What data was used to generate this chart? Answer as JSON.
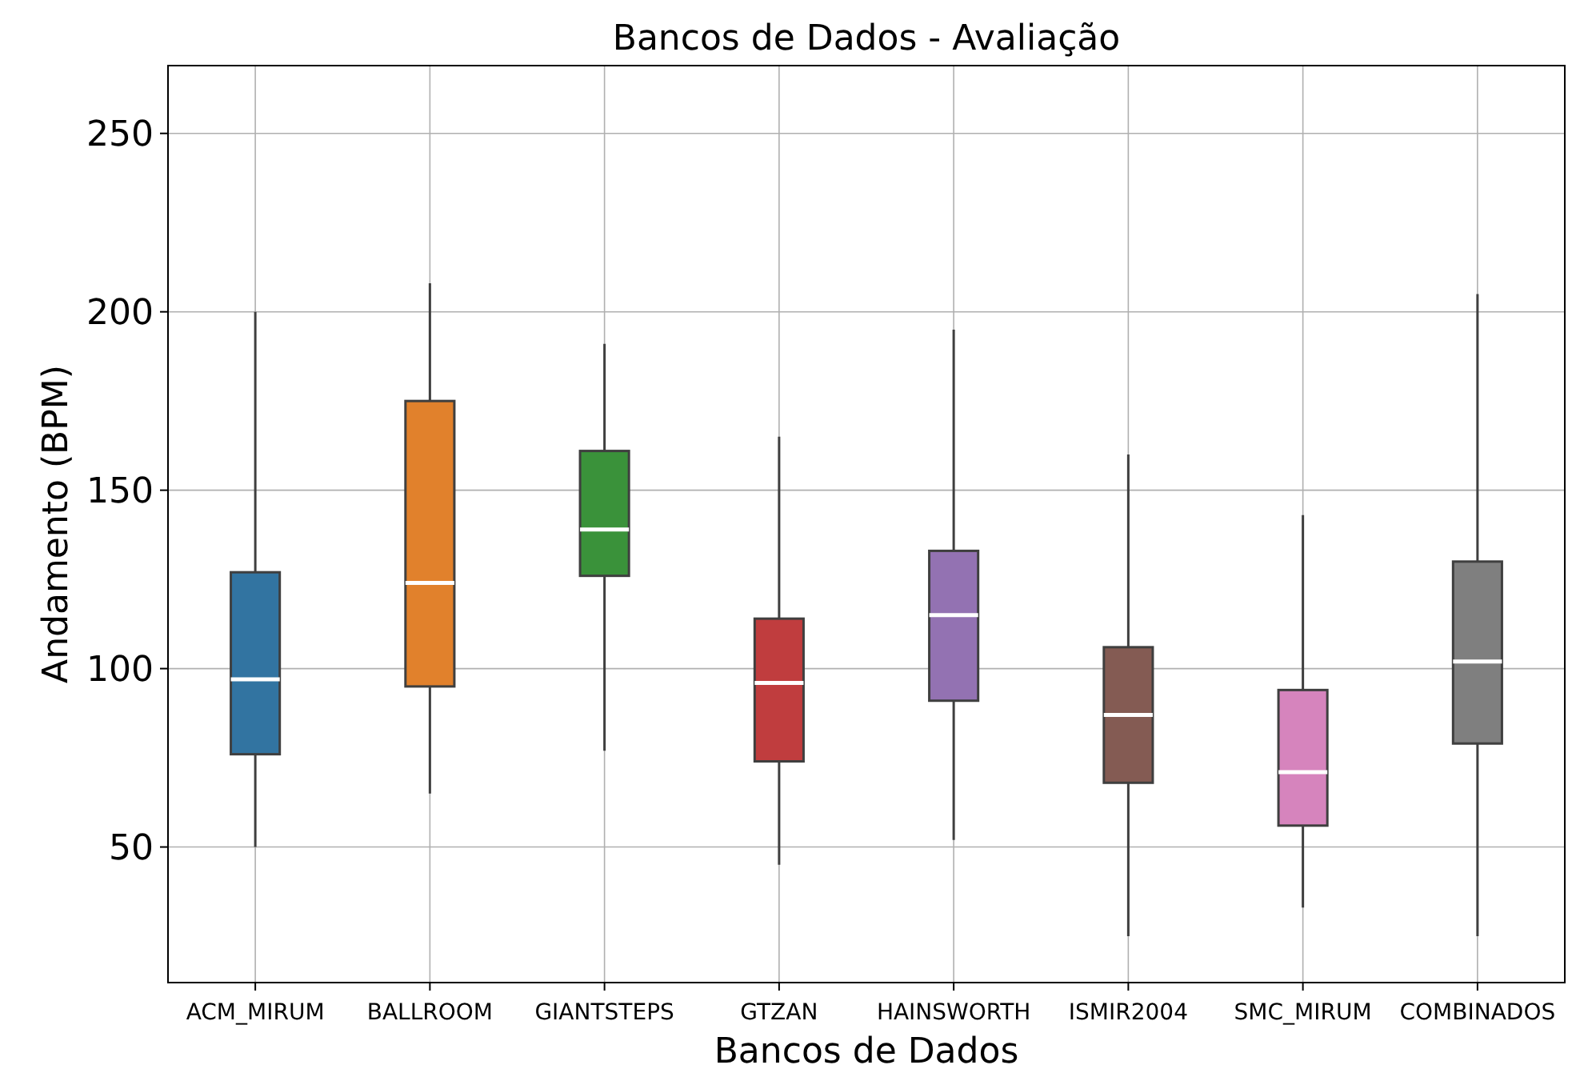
{
  "chart_data": {
    "type": "box",
    "title": "Bancos de Dados - Avaliação",
    "xlabel": "Bancos de Dados",
    "ylabel": "Andamento (BPM)",
    "categories": [
      "ACM_MIRUM",
      "BALLROOM",
      "GIANTSTEPS",
      "GTZAN",
      "HAINSWORTH",
      "ISMIR2004",
      "SMC_MIRUM",
      "COMBINADOS"
    ],
    "colors": [
      "#3274a1",
      "#e1812c",
      "#3a923a",
      "#c03d3e",
      "#9372b2",
      "#845b53",
      "#d684bd",
      "#7f7f7f"
    ],
    "boxes": [
      {
        "low": 50,
        "q1": 76,
        "median": 97,
        "q3": 127,
        "high": 200
      },
      {
        "low": 65,
        "q1": 95,
        "median": 124,
        "q3": 175,
        "high": 208
      },
      {
        "low": 77,
        "q1": 126,
        "median": 139,
        "q3": 161,
        "high": 191
      },
      {
        "low": 45,
        "q1": 74,
        "median": 96,
        "q3": 114,
        "high": 165
      },
      {
        "low": 52,
        "q1": 91,
        "median": 115,
        "q3": 133,
        "high": 195
      },
      {
        "low": 25,
        "q1": 68,
        "median": 87,
        "q3": 106,
        "high": 160
      },
      {
        "low": 33,
        "q1": 56,
        "median": 71,
        "q3": 94,
        "high": 143
      },
      {
        "low": 25,
        "q1": 79,
        "median": 102,
        "q3": 130,
        "high": 205
      }
    ],
    "ylim": [
      12,
      269
    ],
    "yticks": [
      50,
      100,
      150,
      200,
      250
    ],
    "grid": true
  }
}
